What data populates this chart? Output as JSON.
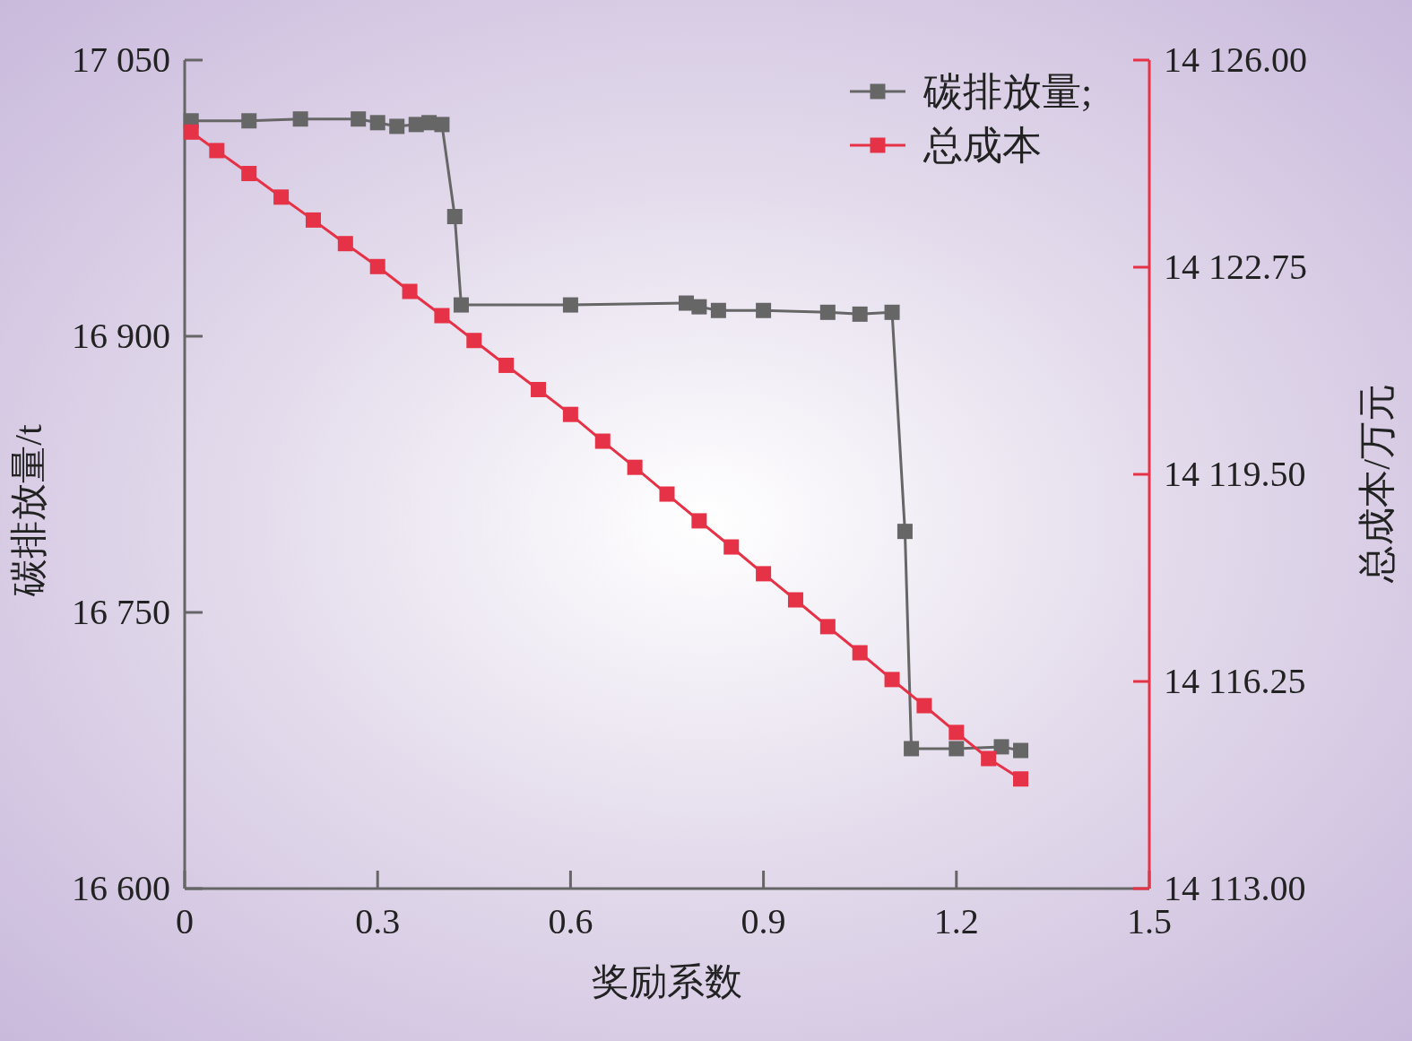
{
  "chart_data": {
    "type": "line",
    "xlabel": "奖励系数",
    "ylabel": "碳排放量/t",
    "y2label": "总成本/万元",
    "legend": "top right",
    "marker": "square",
    "line_style": "solid",
    "xlim": [
      0,
      1.5
    ],
    "xticks": [
      0,
      0.3,
      0.6,
      0.9,
      1.2,
      1.5
    ],
    "ylim": [
      16600,
      17050
    ],
    "yticks": [
      {
        "value": 16600,
        "label": "16 600"
      },
      {
        "value": 16750,
        "label": "16 750"
      },
      {
        "value": 16900,
        "label": "16 900"
      },
      {
        "value": 17050,
        "label": "17 050"
      }
    ],
    "y2lim": [
      14113,
      14126
    ],
    "y2ticks": [
      {
        "value": 14113,
        "label": "14 113.00"
      },
      {
        "value": 14116.25,
        "label": "14 116.25"
      },
      {
        "value": 14119.5,
        "label": "14 119.50"
      },
      {
        "value": 14122.75,
        "label": "14 122.75"
      },
      {
        "value": 14126,
        "label": "14 126.00"
      }
    ],
    "series": [
      {
        "name": "碳排放量;",
        "color": "#666666",
        "x": [
          0.01,
          0.1,
          0.18,
          0.27,
          0.3,
          0.33,
          0.36,
          0.38,
          0.4,
          0.42,
          0.43,
          0.6,
          0.78,
          0.8,
          0.83,
          0.9,
          1.0,
          1.05,
          1.1,
          1.12,
          1.13,
          1.2,
          1.27,
          1.3
        ],
        "values": [
          17017,
          17017,
          17018,
          17018,
          17016,
          17014,
          17015,
          17016,
          17015,
          16965,
          16917,
          16917,
          16918,
          16916,
          16914,
          16914,
          16913,
          16912,
          16913,
          16794,
          16676,
          16676,
          16677,
          16675
        ]
      },
      {
        "name": "总成本",
        "color": "#e63246",
        "axis": "y2",
        "x": [
          0.01,
          0.05,
          0.1,
          0.15,
          0.2,
          0.25,
          0.3,
          0.35,
          0.4,
          0.45,
          0.5,
          0.55,
          0.6,
          0.65,
          0.7,
          0.75,
          0.8,
          0.85,
          0.9,
          0.95,
          1.0,
          1.05,
          1.1,
          1.15,
          1.2,
          1.25,
          1.3
        ],
        "values": [
          14124.87,
          14124.58,
          14124.22,
          14123.85,
          14123.49,
          14123.12,
          14122.76,
          14122.37,
          14121.99,
          14121.6,
          14121.21,
          14120.83,
          14120.44,
          14120.02,
          14119.61,
          14119.19,
          14118.77,
          14118.36,
          14117.94,
          14117.53,
          14117.11,
          14116.7,
          14116.28,
          14115.87,
          14115.45,
          14115.04,
          14114.72
        ]
      }
    ]
  }
}
